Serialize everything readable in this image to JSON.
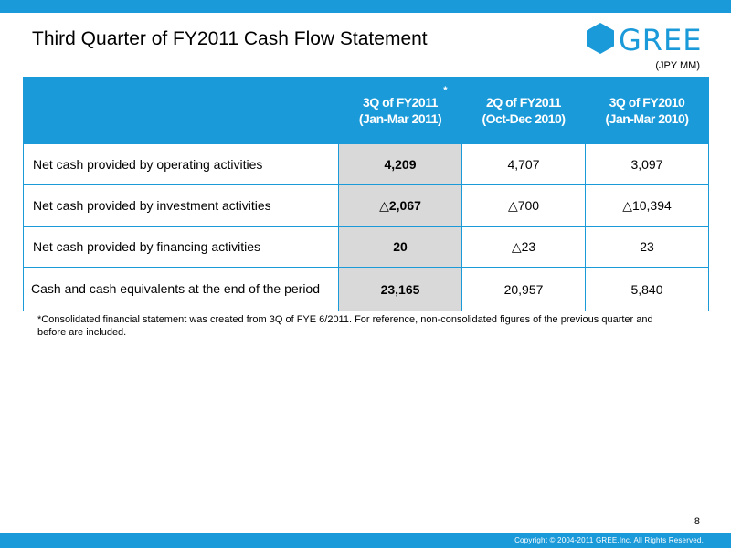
{
  "slide": {
    "title": "Third Quarter of FY2011 Cash Flow Statement",
    "units": "(JPY MM)",
    "footnote": "*Consolidated financial statement was created from 3Q of FYE 6/2011. For reference, non-consolidated figures of the previous quarter and before are included.",
    "page_number": "8",
    "copyright": "Copyright © 2004-2011 GREE,Inc. All Rights Reserved."
  },
  "logo": {
    "text": "GREE",
    "icon": "hexagon-icon"
  },
  "colors": {
    "brand": "#1a9ad9",
    "highlight_cell": "#d9d9d9"
  },
  "table": {
    "headers": [
      {
        "period": "",
        "range": ""
      },
      {
        "period": "3Q of FY2011",
        "range": "(Jan-Mar 2011)",
        "asterisk": "*"
      },
      {
        "period": "2Q of FY2011",
        "range": "(Oct-Dec 2010)"
      },
      {
        "period": "3Q of FY2010",
        "range": "(Jan-Mar 2010)"
      }
    ],
    "rows": [
      {
        "label": "Net cash provided by operating activities",
        "values": [
          "4,209",
          "4,707",
          "3,097"
        ]
      },
      {
        "label": "Net cash provided by investment activities",
        "values": [
          "△2,067",
          "△700",
          "△10,394"
        ]
      },
      {
        "label": "Net cash provided by financing activities",
        "values": [
          "20",
          "△23",
          "23"
        ]
      },
      {
        "label": "Cash and cash equivalents at the end of the period",
        "values": [
          "23,165",
          "20,957",
          "5,840"
        ]
      }
    ]
  }
}
